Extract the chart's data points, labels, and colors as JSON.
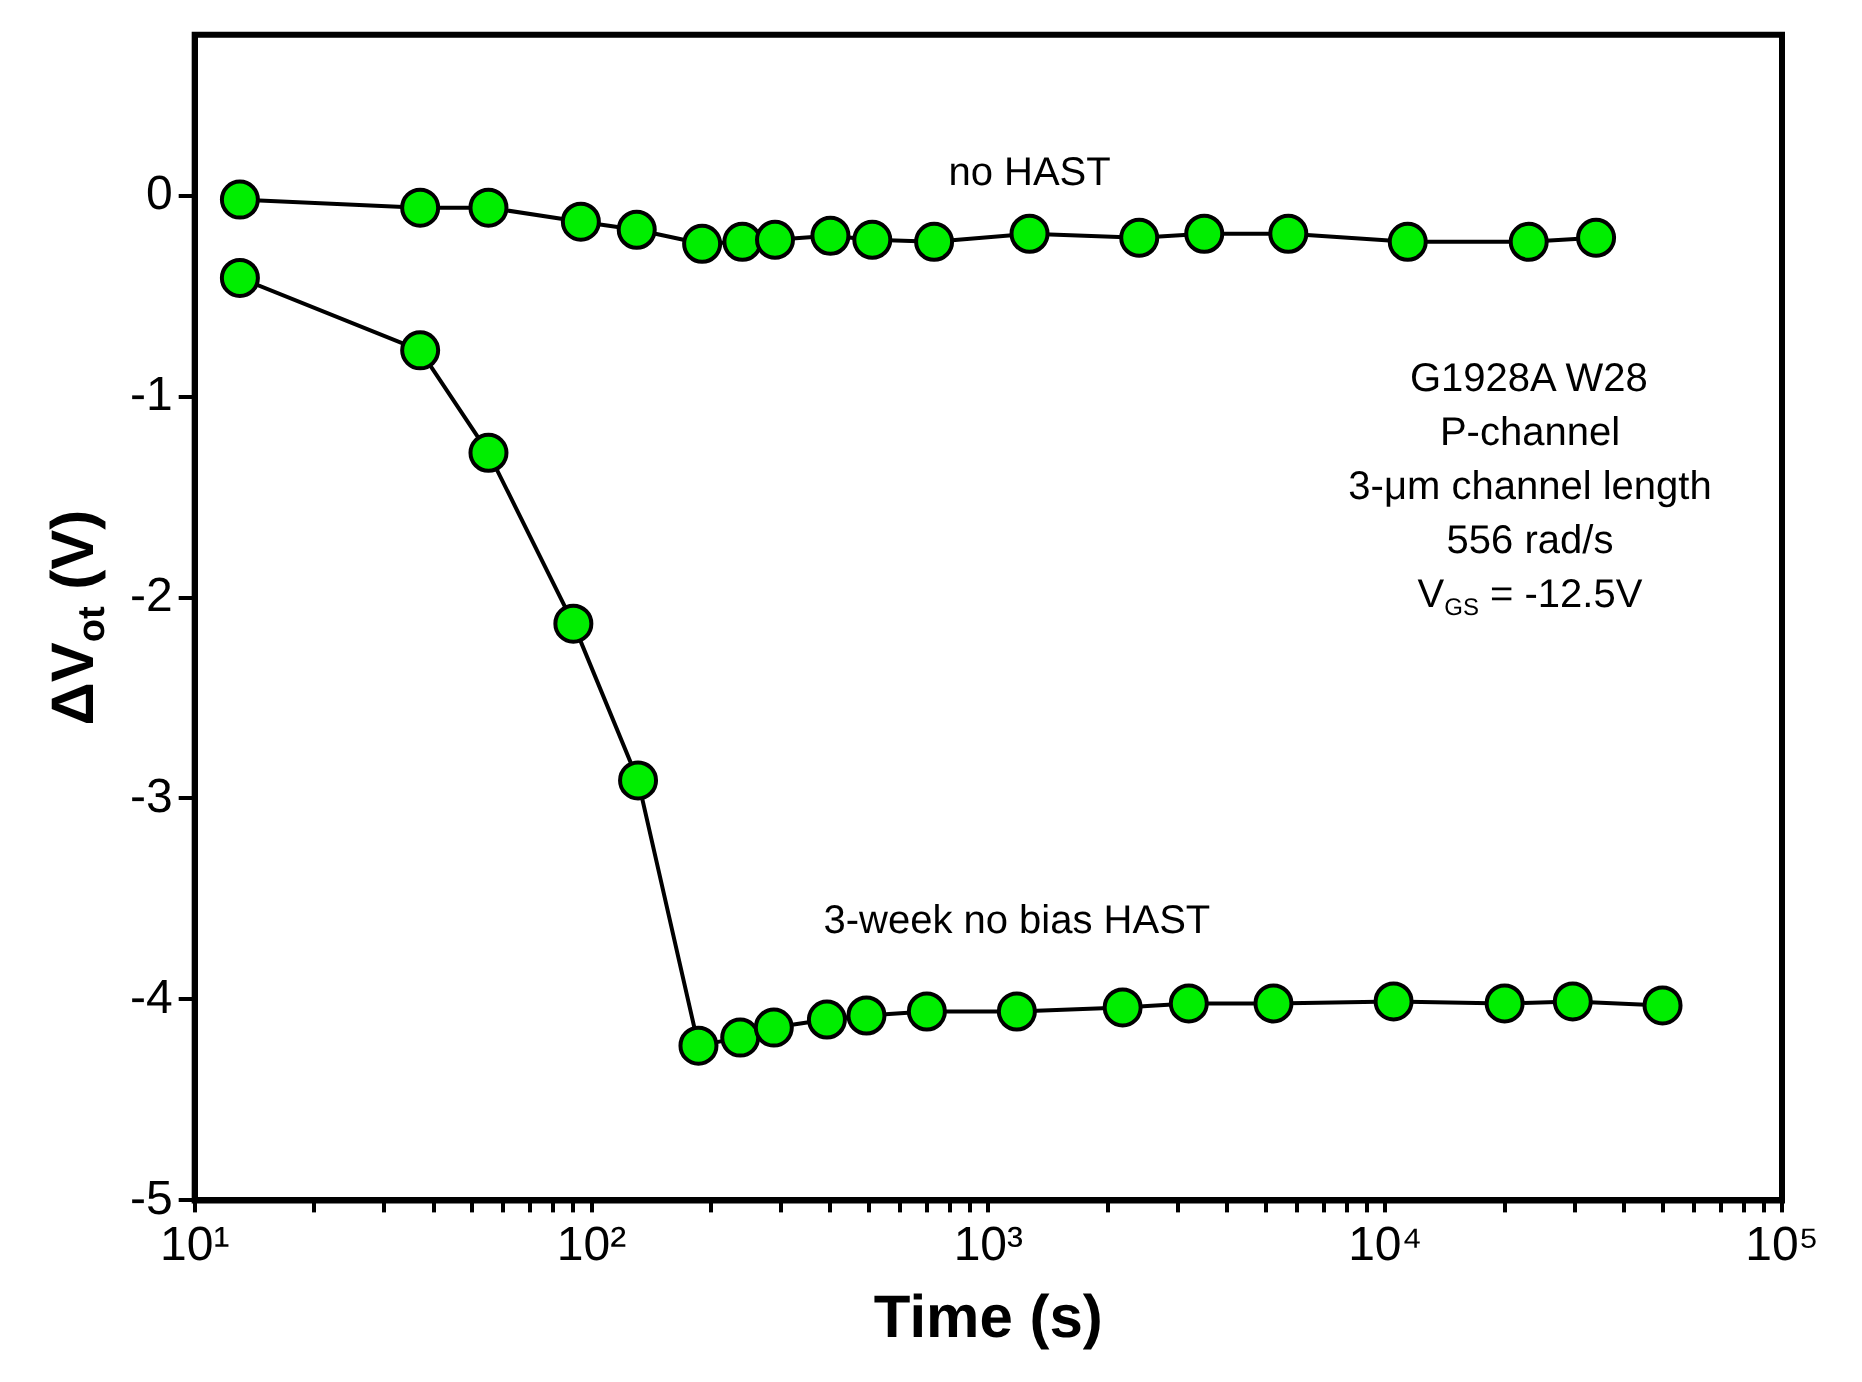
{
  "chart_data": {
    "type": "line",
    "xlabel": "Time (s)",
    "ylabel": "ΔV$_{ot}$ (V)",
    "log": "x",
    "grid": false,
    "legend": false,
    "marker": "circle",
    "line_style": "solid",
    "xlim": [
      10,
      100000
    ],
    "ylim": [
      -5,
      0.8
    ],
    "xticks": [
      {
        "value": 10,
        "label": "10¹"
      },
      {
        "value": 20,
        "label": null
      },
      {
        "value": 30,
        "label": null
      },
      {
        "value": 40,
        "label": null
      },
      {
        "value": 50,
        "label": null
      },
      {
        "value": 60,
        "label": null
      },
      {
        "value": 70,
        "label": null
      },
      {
        "value": 80,
        "label": null
      },
      {
        "value": 90,
        "label": null
      },
      {
        "value": 100,
        "label": "10²"
      },
      {
        "value": 200,
        "label": null
      },
      {
        "value": 300,
        "label": null
      },
      {
        "value": 400,
        "label": null
      },
      {
        "value": 500,
        "label": null
      },
      {
        "value": 600,
        "label": null
      },
      {
        "value": 700,
        "label": null
      },
      {
        "value": 800,
        "label": null
      },
      {
        "value": 900,
        "label": null
      },
      {
        "value": 1000,
        "label": "10³"
      },
      {
        "value": 2000,
        "label": null
      },
      {
        "value": 3000,
        "label": null
      },
      {
        "value": 4000,
        "label": null
      },
      {
        "value": 5000,
        "label": null
      },
      {
        "value": 6000,
        "label": null
      },
      {
        "value": 7000,
        "label": null
      },
      {
        "value": 8000,
        "label": null
      },
      {
        "value": 9000,
        "label": null
      },
      {
        "value": 10000,
        "label": "10⁴"
      },
      {
        "value": 20000,
        "label": null
      },
      {
        "value": 30000,
        "label": null
      },
      {
        "value": 40000,
        "label": null
      },
      {
        "value": 50000,
        "label": null
      },
      {
        "value": 60000,
        "label": null
      },
      {
        "value": 70000,
        "label": null
      },
      {
        "value": 80000,
        "label": null
      },
      {
        "value": 90000,
        "label": null
      },
      {
        "value": 100000,
        "label": "10⁵"
      }
    ],
    "yticks": [
      -5,
      -4,
      -3,
      -2,
      -1,
      0
    ],
    "series": [
      {
        "name": "no HAST",
        "color": "#00ee00",
        "x": [
          13,
          37,
          55,
          94,
          130,
          190,
          240,
          290,
          400,
          510,
          730,
          1270,
          2400,
          3500,
          5700,
          11400,
          23000,
          34000
        ],
        "values": [
          -0.02,
          -0.06,
          -0.06,
          -0.13,
          -0.17,
          -0.24,
          -0.23,
          -0.22,
          -0.2,
          -0.22,
          -0.23,
          -0.19,
          -0.21,
          -0.19,
          -0.19,
          -0.23,
          -0.23,
          -0.21
        ]
      },
      {
        "name": "3-week no bias HAST",
        "color": "#00ee00",
        "x": [
          13,
          37,
          55,
          90,
          131,
          186,
          237,
          288,
          392,
          493,
          700,
          1180,
          2180,
          3200,
          5230,
          10500,
          20000,
          29700,
          50000
        ],
        "values": [
          -0.41,
          -0.77,
          -1.28,
          -2.13,
          -2.91,
          -4.23,
          -4.19,
          -4.14,
          -4.1,
          -4.08,
          -4.06,
          -4.06,
          -4.04,
          -4.02,
          -4.02,
          -4.01,
          -4.02,
          -4.01,
          -4.03
        ]
      }
    ],
    "annotations": [
      "G1928A W28",
      "P-channel",
      "3-μm channel length",
      "556 rad/s",
      "V$_{GS}$ = -12.5V"
    ]
  }
}
